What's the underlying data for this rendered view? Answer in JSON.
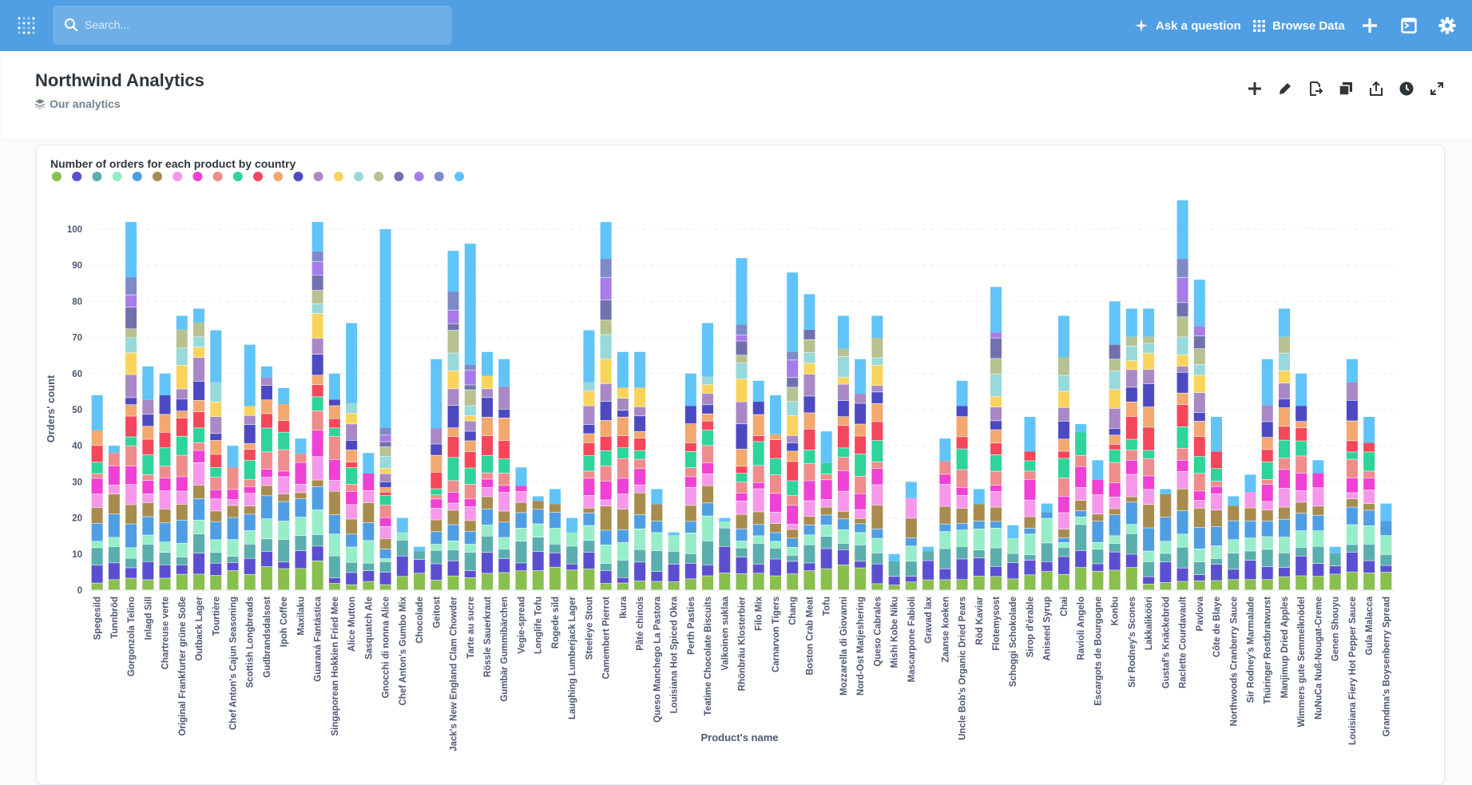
{
  "topbar": {
    "search_placeholder": "Search...",
    "ask_label": "Ask a question",
    "browse_label": "Browse Data"
  },
  "dashboard": {
    "title": "Northwind Analytics",
    "collection": "Our analytics"
  },
  "card": {
    "title": "Number of orders for each product by country"
  },
  "chart_data": {
    "type": "bar",
    "stacked": true,
    "xlabel": "Product's name",
    "ylabel": "Orders' count",
    "ylim": [
      0,
      110
    ],
    "yticks": [
      0,
      10,
      20,
      30,
      40,
      50,
      60,
      70,
      80,
      90,
      100
    ],
    "grid": "horizontal dashed",
    "legend": "top-left, color dots without labels",
    "palette": [
      "#88bf4d",
      "#5b4fd1",
      "#5aaead",
      "#96edc7",
      "#4f9ee3",
      "#a88c4e",
      "#f598ea",
      "#ef41d3",
      "#ef8c8c",
      "#2ed499",
      "#f5475b",
      "#f2a86f",
      "#4c4ac2",
      "#a989c5",
      "#f9d45c",
      "#98d9d9",
      "#b7c291",
      "#7172ad",
      "#a77ce8",
      "#7e8bc7",
      "#61c4f8"
    ],
    "categories": [
      "Spegesild",
      "Tunnbröd",
      "Gorgonzola Telino",
      "Inlagd Sill",
      "Chartreuse verte",
      "Original Frankfurter grüne Soße",
      "Outback Lager",
      "Tourtière",
      "Chef Anton's Cajun Seasoning",
      "Scottish Longbreads",
      "Gudbrandsdalsost",
      "Ipoh Coffee",
      "Maxilaku",
      "Guaraná Fantástica",
      "Singaporean Hokkien Fried Mee",
      "Alice Mutton",
      "Sasquatch Ale",
      "Gnocchi di nonna Alice",
      "Chef Anton's Gumbo Mix",
      "Chocolade",
      "Geitost",
      "Jack's New England Clam Chowder",
      "Tarte au sucre",
      "Rössle Sauerkraut",
      "Gumbär Gummibärchen",
      "Vegie-spread",
      "Longlife Tofu",
      "Rogede sild",
      "Laughing Lumberjack Lager",
      "Steeleye Stout",
      "Camembert Pierrot",
      "Ikura",
      "Pâté chinois",
      "Queso Manchego La Pastora",
      "Louisiana Hot Spiced Okra",
      "Perth Pasties",
      "Teatime Chocolate Biscuits",
      "Valkoinen suklaa",
      "Rhönbräu Klosterbier",
      "Filo Mix",
      "Carnarvon Tigers",
      "Chang",
      "Boston Crab Meat",
      "Tofu",
      "Mozzarella di Giovanni",
      "Nord-Ost Matjeshering",
      "Queso Cabrales",
      "Mishi Kobe Niku",
      "Mascarpone Fabioli",
      "Gravad lax",
      "Zaanse koeken",
      "Uncle Bob's Organic Dried Pears",
      "Röd Kaviar",
      "Flotemysost",
      "Schoggi Schokolade",
      "Sirop d'érable",
      "Aniseed Syrup",
      "Chai",
      "Ravioli Angelo",
      "Escargots de Bourgogne",
      "Konbu",
      "Sir Rodney's Scones",
      "Lakkalikööri",
      "Gustaf's Knäckebröd",
      "Raclette Courdavault",
      "Pavlova",
      "Côte de Blaye",
      "Northwoods Cranberry Sauce",
      "Sir Rodney's Marmalade",
      "Thüringer Rostbratwurst",
      "Manjimup Dried Apples",
      "Wimmers gute Semmelknödel",
      "NuNuCa Nuß-Nougat-Creme",
      "Genen Shouyu",
      "Louisiana Fiery Hot Pepper Sauce",
      "Gula Malacca",
      "Grandma's Boysenberry Spread"
    ],
    "totals": [
      54,
      40,
      102,
      62,
      60,
      76,
      78,
      72,
      40,
      68,
      62,
      56,
      42,
      102,
      60,
      74,
      38,
      100,
      20,
      12,
      64,
      94,
      96,
      66,
      64,
      34,
      26,
      28,
      20,
      72,
      102,
      66,
      66,
      28,
      16,
      60,
      74,
      20,
      92,
      58,
      54,
      88,
      82,
      44,
      76,
      64,
      76,
      10,
      30,
      12,
      42,
      58,
      28,
      84,
      18,
      48,
      24,
      76,
      46,
      36,
      80,
      78,
      78,
      28,
      108,
      86,
      48,
      26,
      32,
      64,
      78,
      60,
      36,
      12,
      64,
      48,
      24
    ],
    "top_series_share": [
      0.18,
      0.05,
      0.15,
      0.15,
      0.1,
      0.05,
      0.05,
      0.2,
      0.15,
      0.25,
      0.05,
      0.08,
      0.1,
      0.08,
      0.12,
      0.3,
      0.15,
      0.55,
      0.2,
      0.1,
      0.3,
      0.12,
      0.35,
      0.1,
      0.12,
      0.15,
      0.05,
      0.15,
      0.2,
      0.2,
      0.1,
      0.15,
      0.15,
      0.15,
      0.05,
      0.15,
      0.2,
      0.05,
      0.2,
      0.1,
      0.2,
      0.25,
      0.12,
      0.2,
      0.12,
      0.15,
      0.08,
      0.2,
      0.15,
      0.1,
      0.15,
      0.12,
      0.15,
      0.15,
      0.2,
      0.2,
      0.1,
      0.15,
      0.05,
      0.15,
      0.15,
      0.1,
      0.1,
      0.05,
      0.15,
      0.15,
      0.2,
      0.1,
      0.15,
      0.2,
      0.1,
      0.15,
      0.1,
      0.15,
      0.1,
      0.15,
      0.2
    ]
  }
}
